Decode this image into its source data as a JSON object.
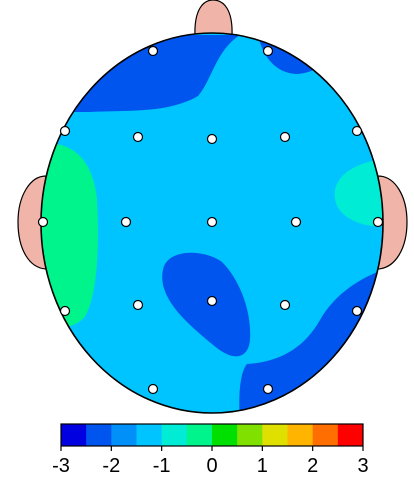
{
  "colors": {
    "head_outline": "#000000",
    "ear_nose_fill": "#f0b4a8",
    "electrode_fill": "#ffffff",
    "electrode_stroke": "#000000",
    "background": "#ffffff"
  },
  "colorbar": {
    "min": -3,
    "max": 3,
    "tick_labels": [
      "-3",
      "-2",
      "-1",
      "0",
      "1",
      "2",
      "3"
    ],
    "bins": [
      {
        "from": -3.0,
        "to": -2.5,
        "color": "#0000e0"
      },
      {
        "from": -2.5,
        "to": -2.0,
        "color": "#0055ee"
      },
      {
        "from": -2.0,
        "to": -1.5,
        "color": "#0090f8"
      },
      {
        "from": -1.5,
        "to": -1.0,
        "color": "#00c4ff"
      },
      {
        "from": -1.0,
        "to": -0.5,
        "color": "#00ecd4"
      },
      {
        "from": -0.5,
        "to": 0.0,
        "color": "#00f48c"
      },
      {
        "from": 0.0,
        "to": 0.5,
        "color": "#00e000"
      },
      {
        "from": 0.5,
        "to": 1.0,
        "color": "#80e000"
      },
      {
        "from": 1.0,
        "to": 1.5,
        "color": "#e0e000"
      },
      {
        "from": 1.5,
        "to": 2.0,
        "color": "#ffb400"
      },
      {
        "from": 2.0,
        "to": 2.5,
        "color": "#ff6e00"
      },
      {
        "from": 2.5,
        "to": 3.0,
        "color": "#ff0000"
      }
    ]
  },
  "map_colors": {
    "base": "#00c4ff",
    "strong_negative": "#0055ee",
    "weak_negative": "#00ecd4",
    "near_zero": "#00f48c"
  },
  "electrode_count": 19
}
